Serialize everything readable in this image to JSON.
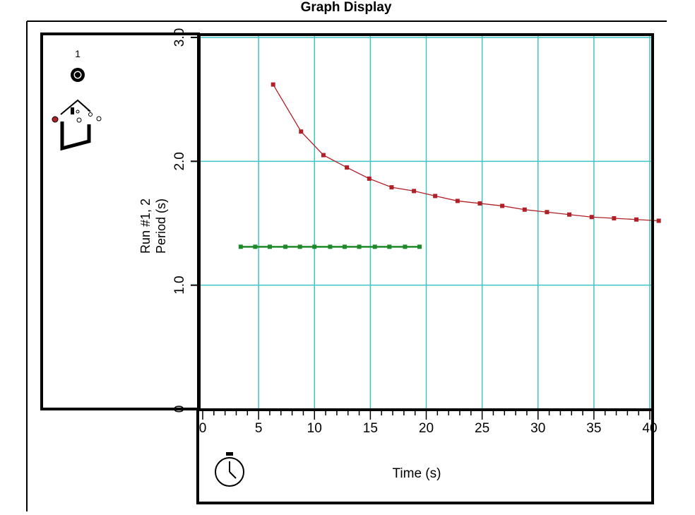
{
  "window": {
    "title": "Graph Display"
  },
  "run_indicator": {
    "label": "1"
  },
  "icons": {
    "run_selector": "radio-dot-icon",
    "sensor": "pendulum-sensor-icon",
    "timer": "stopwatch-icon"
  },
  "colors": {
    "grid": "#3fc4c4",
    "series_1": "#b02028",
    "series_2": "#1f8a2a",
    "frame": "#000000"
  },
  "chart_data": {
    "type": "line",
    "title": "",
    "xlabel": "Time (s)",
    "ylabel_lines": [
      "Run #1, 2",
      "Period (s)"
    ],
    "xlim": [
      0,
      40
    ],
    "ylim": [
      0,
      3.0
    ],
    "x_ticks": [
      "0",
      "5",
      "10",
      "15",
      "20",
      "25",
      "30",
      "35",
      "40"
    ],
    "x_tick_values": [
      0,
      5,
      10,
      15,
      20,
      25,
      30,
      35,
      40
    ],
    "x_minor_step": 1,
    "y_ticks": [
      "0",
      "1.0",
      "2.0",
      "3.0"
    ],
    "y_tick_values": [
      0,
      1.0,
      2.0,
      3.0
    ],
    "grid": true,
    "series": [
      {
        "x": [
          6.3,
          8.8,
          10.8,
          12.9,
          14.9,
          16.9,
          18.9,
          20.8,
          22.8,
          24.8,
          26.8,
          28.8,
          30.8,
          32.8,
          34.8,
          36.8,
          38.8,
          40.8
        ],
        "y": [
          2.62,
          2.24,
          2.05,
          1.95,
          1.86,
          1.79,
          1.76,
          1.72,
          1.68,
          1.66,
          1.64,
          1.61,
          1.59,
          1.57,
          1.55,
          1.54,
          1.53,
          1.52
        ]
      },
      {
        "x": [
          3.4,
          4.7,
          6.0,
          7.4,
          8.7,
          10.0,
          11.4,
          12.7,
          14.0,
          15.4,
          16.7,
          18.1,
          19.4
        ],
        "y": [
          1.31,
          1.31,
          1.31,
          1.31,
          1.31,
          1.31,
          1.31,
          1.31,
          1.31,
          1.31,
          1.31,
          1.31,
          1.31
        ]
      }
    ]
  }
}
